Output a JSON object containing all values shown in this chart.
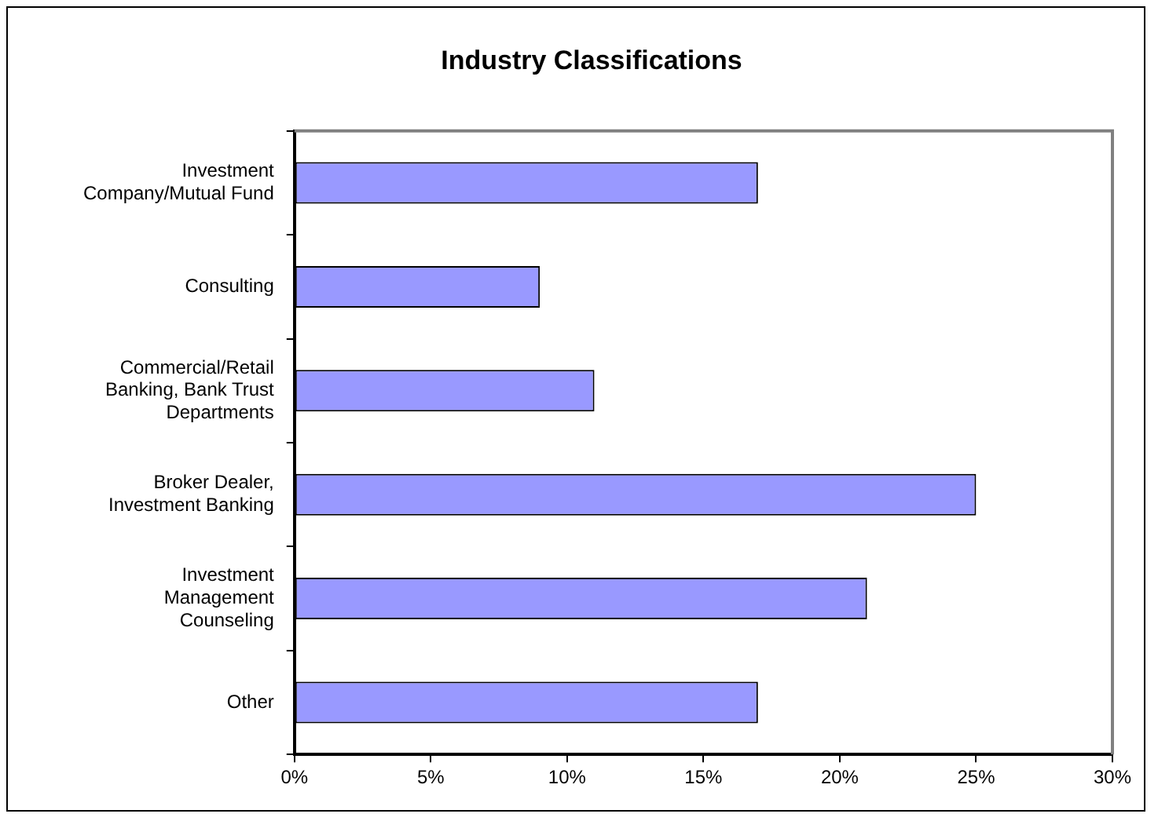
{
  "chart_data": {
    "type": "bar",
    "orientation": "horizontal",
    "title": "Industry Classifications",
    "categories": [
      "Investment Company/Mutual Fund",
      "Consulting",
      "Commercial/Retail Banking, Bank Trust Departments",
      "Broker Dealer, Investment Banking",
      "Investment Management Counseling",
      "Other"
    ],
    "values": [
      17,
      9,
      11,
      25,
      21,
      17
    ],
    "color": "#9999ff",
    "xlim": [
      0,
      30
    ],
    "xticks": [
      {
        "value": 0,
        "label": "0%"
      },
      {
        "value": 5,
        "label": "5%"
      },
      {
        "value": 10,
        "label": "10%"
      },
      {
        "value": 15,
        "label": "15%"
      },
      {
        "value": 20,
        "label": "20%"
      },
      {
        "value": 25,
        "label": "25%"
      },
      {
        "value": 30,
        "label": "30%"
      }
    ],
    "grid": false,
    "legend": false
  }
}
